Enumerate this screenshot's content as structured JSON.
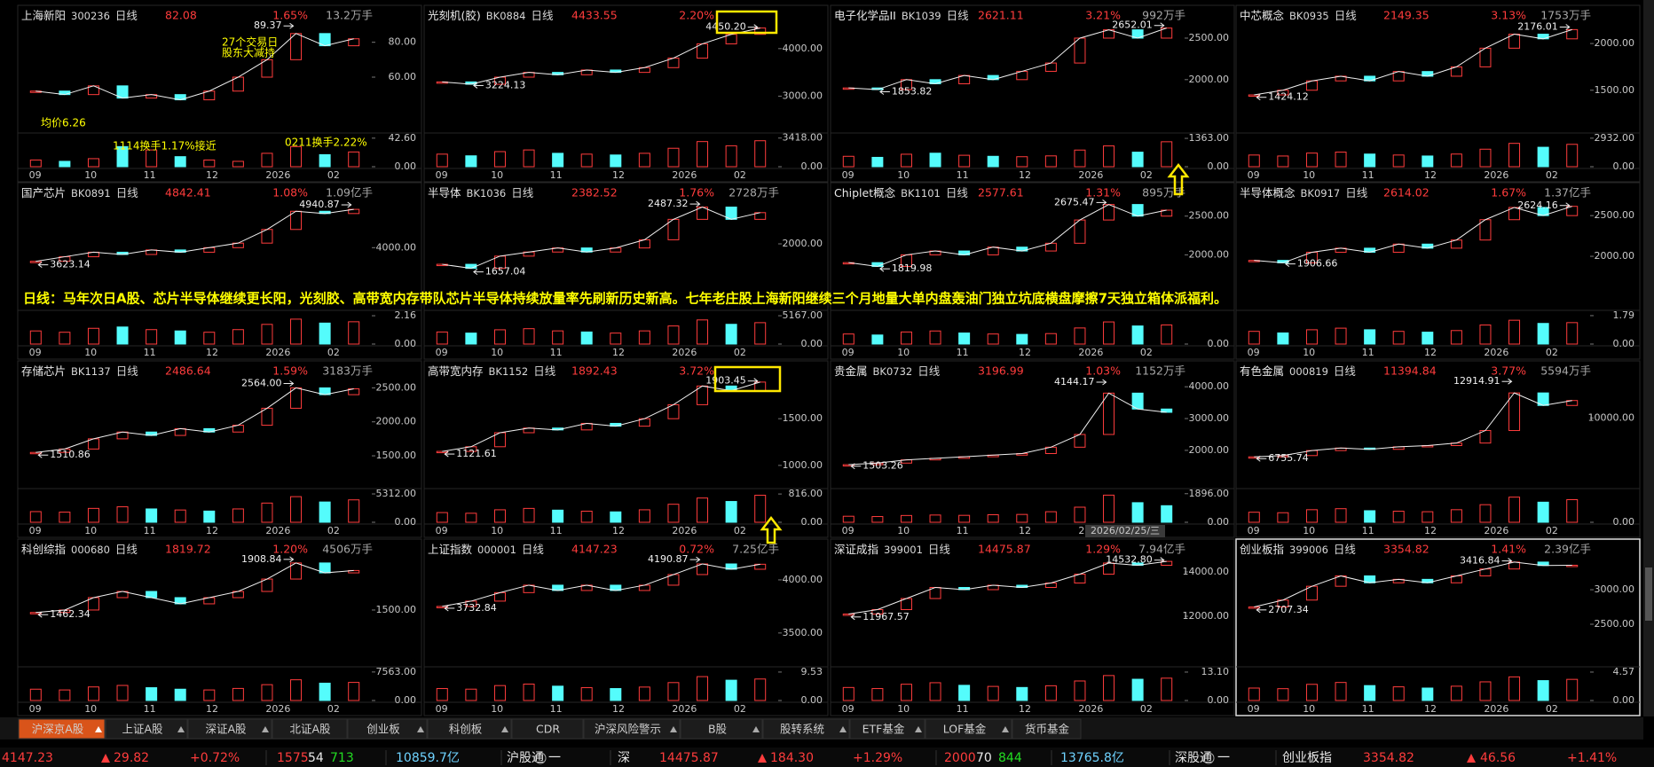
{
  "announcement": "日线：马年次日A股、芯片半导体继续更长阳，光刻胶、高带宽内存带队芯片半导体持续放量率先刷新历史新高。七年老庄股上海新阳继续三个月地量大单内盘轰油门独立坑底横盘摩擦7天独立箱体派福利。",
  "panels": [
    {
      "name": "上海新阳",
      "code": "300236",
      "period": "日线",
      "price": "82.08",
      "change": "1.65%",
      "volume": "13.2万手",
      "ylim": [
        30,
        90
      ],
      "yticks": [
        {
          "value": 80,
          "label": "80.00"
        },
        {
          "value": 60,
          "label": "60.00"
        }
      ],
      "high": 89.37,
      "close": [
        52,
        50,
        55,
        48,
        50,
        47,
        52,
        60,
        70,
        85,
        78,
        82
      ],
      "vylim": [
        0,
        45
      ],
      "vticks": [
        {
          "value": 42.6,
          "label": "42.60"
        },
        {
          "value": 0,
          "label": "0.00"
        }
      ],
      "vol": [
        10,
        8,
        12,
        30,
        25,
        15,
        10,
        8,
        20,
        30,
        18,
        22
      ],
      "xlabels": [
        "09",
        "10",
        "11",
        "12",
        "2026",
        "02"
      ],
      "annotations": [
        "27个交易日",
        "股东大减持",
        "1114换手1.17%接近",
        "0211换手2.22%",
        "均价6.26"
      ]
    },
    {
      "name": "光刻机(胶)",
      "code": "BK0884",
      "period": "日线",
      "price": "4433.55",
      "change": "2.20%",
      "ylim": [
        2300,
        4500
      ],
      "yticks": [
        {
          "value": 4000,
          "label": "4000.00"
        },
        {
          "value": 3000,
          "label": "3000.00"
        }
      ],
      "high": {
        "value": 4450.2,
        "label": "4450.20"
      },
      "low": 3224.13,
      "close": [
        3300,
        3250,
        3400,
        3500,
        3450,
        3550,
        3500,
        3600,
        3800,
        4100,
        4300,
        4433
      ],
      "vylim": [
        0,
        3600
      ],
      "vticks": [
        {
          "value": 3418,
          "label": "3418.00"
        },
        {
          "value": 0,
          "label": "0.00"
        }
      ],
      "vol": [
        1500,
        1300,
        1800,
        2000,
        1600,
        1500,
        1400,
        1600,
        2200,
        3000,
        2500,
        3100
      ],
      "xlabels": [
        "09",
        "10",
        "11",
        "12",
        "2026",
        "02"
      ]
    },
    {
      "name": "电子化学品II",
      "code": "BK1039",
      "period": "日线",
      "price": "2621.11",
      "change": "3.21%",
      "volume": "992万手",
      "ylim": [
        1400,
        2660
      ],
      "yticks": [
        {
          "value": 2500,
          "label": "2500.00"
        },
        {
          "value": 2000,
          "label": "2000.00"
        }
      ],
      "high": 2652.01,
      "low": 1853.82,
      "close": [
        1900,
        1880,
        2000,
        1950,
        2050,
        2000,
        2100,
        2200,
        2500,
        2600,
        2500,
        2621
      ],
      "vylim": [
        0,
        1450
      ],
      "vticks": [
        {
          "value": 1363,
          "label": "1363.00"
        },
        {
          "value": 0,
          "label": "0.00"
        }
      ],
      "vol": [
        500,
        450,
        600,
        650,
        550,
        500,
        480,
        520,
        800,
        1000,
        700,
        1200
      ],
      "xlabels": [
        "09",
        "10",
        "11",
        "12",
        "2026",
        "02"
      ]
    },
    {
      "name": "中芯概念",
      "code": "BK0935",
      "period": "日线",
      "price": "2149.35",
      "change": "3.13%",
      "volume": "1753万手",
      "ylim": [
        1080,
        2200
      ],
      "yticks": [
        {
          "value": 2000,
          "label": "2000.00"
        },
        {
          "value": 1500,
          "label": "1500.00"
        }
      ],
      "high": 2176.01,
      "low": 1424.12,
      "close": [
        1450,
        1500,
        1600,
        1650,
        1600,
        1700,
        1650,
        1750,
        1950,
        2100,
        2050,
        2149
      ],
      "vylim": [
        0,
        3100
      ],
      "vticks": [
        {
          "value": 2932,
          "label": "2932.00"
        },
        {
          "value": 0,
          "label": "0.00"
        }
      ],
      "vol": [
        1200,
        1100,
        1400,
        1500,
        1300,
        1200,
        1100,
        1300,
        1800,
        2400,
        2000,
        2300
      ],
      "xlabels": [
        "09",
        "10",
        "11",
        "12",
        "2026",
        "02"
      ]
    },
    {
      "name": "国产芯片",
      "code": "BK0891",
      "period": "日线",
      "price": "4842.41",
      "change": "1.08%",
      "volume": "1.09亿手",
      "ylim": [
        2700,
        5000
      ],
      "yticks": [
        {
          "value": 4000,
          "label": "4000.00"
        }
      ],
      "high": 4940.87,
      "low": 3623.14,
      "close": [
        3700,
        3800,
        3900,
        3850,
        3950,
        3900,
        4000,
        4100,
        4400,
        4800,
        4750,
        4842
      ],
      "vylim": [
        0,
        2.3
      ],
      "vticks": [
        2.16,
        {
          "value": 0,
          "label": "0.00"
        }
      ],
      "vol": [
        1.0,
        0.9,
        1.2,
        1.3,
        1.1,
        1.0,
        0.9,
        1.1,
        1.5,
        1.9,
        1.6,
        1.7
      ],
      "xlabels": [
        "09",
        "10",
        "11",
        "12",
        "2026",
        "02"
      ]
    },
    {
      "name": "半导体",
      "code": "BK1036",
      "period": "日线",
      "price": "2382.52",
      "change": "1.76%",
      "volume": "2728万手",
      "ylim": [
        1230,
        2510
      ],
      "yticks": [
        {
          "value": 2000,
          "label": "2000.00"
        }
      ],
      "high": 2487.32,
      "low": 1657.04,
      "close": [
        1750,
        1700,
        1850,
        1900,
        1950,
        1900,
        1950,
        2050,
        2300,
        2450,
        2300,
        2382
      ],
      "vylim": [
        0,
        5500
      ],
      "vticks": [
        {
          "value": 5167,
          "label": "5167.00"
        },
        {
          "value": 0,
          "label": "0.00"
        }
      ],
      "vol": [
        2200,
        2000,
        2600,
        2800,
        2400,
        2200,
        2000,
        2400,
        3300,
        4400,
        3600,
        3900
      ],
      "xlabels": [
        "09",
        "10",
        "11",
        "12",
        "2026",
        "02"
      ]
    },
    {
      "name": "Chiplet概念",
      "code": "BK1101",
      "period": "日线",
      "price": "2577.61",
      "change": "1.31%",
      "volume": "895万手",
      "ylim": [
        1330,
        2680
      ],
      "yticks": [
        {
          "value": 2500,
          "label": "2500.00"
        },
        {
          "value": 2000,
          "label": "2000.00"
        }
      ],
      "high": 2675.47,
      "low": 1819.98,
      "close": [
        1900,
        1850,
        2000,
        2050,
        2000,
        2100,
        2050,
        2150,
        2450,
        2650,
        2500,
        2577
      ],
      "vylim": [
        0,
        1500
      ],
      "vticks": [
        {
          "value": 0,
          "label": "0.00"
        }
      ],
      "vol": [
        500,
        450,
        600,
        650,
        550,
        500,
        480,
        520,
        800,
        1100,
        900,
        950
      ],
      "xlabels": [
        "09",
        "10",
        "11",
        "12",
        "2026",
        "02"
      ]
    },
    {
      "name": "半导体概念",
      "code": "BK0917",
      "period": "日线",
      "price": "2614.02",
      "change": "1.67%",
      "volume": "1.37亿手",
      "ylim": [
        1380,
        2665
      ],
      "yticks": [
        {
          "value": 2500,
          "label": "2500.00"
        },
        {
          "value": 2000,
          "label": "2000.00"
        }
      ],
      "high": 2624.16,
      "low": 1906.66,
      "close": [
        1950,
        1920,
        2050,
        2100,
        2050,
        2150,
        2100,
        2200,
        2450,
        2600,
        2500,
        2614
      ],
      "vylim": [
        0,
        1.9
      ],
      "vticks": [
        1.79,
        {
          "value": 0,
          "label": "0.00"
        }
      ],
      "vol": [
        0.8,
        0.7,
        0.9,
        1.0,
        0.9,
        0.8,
        0.75,
        0.85,
        1.2,
        1.5,
        1.3,
        1.35
      ],
      "xlabels": [
        "09",
        "10",
        "11",
        "12",
        "2026",
        "02"
      ]
    },
    {
      "name": "存储芯片",
      "code": "BK1137",
      "period": "日线",
      "price": "2486.64",
      "change": "1.59%",
      "volume": "3183万手",
      "ylim": [
        1070,
        2610
      ],
      "yticks": [
        {
          "value": 2500,
          "label": "2500.00"
        },
        {
          "value": 2000,
          "label": "2000.00"
        },
        {
          "value": 1500,
          "label": "1500.00"
        }
      ],
      "high": {
        "value": 2564,
        "label": "2564.00"
      },
      "low": 1510.86,
      "close": [
        1550,
        1600,
        1750,
        1850,
        1800,
        1900,
        1850,
        1950,
        2200,
        2500,
        2400,
        2486
      ],
      "vylim": [
        0,
        5650
      ],
      "vticks": [
        {
          "value": 5312,
          "label": "5312.00"
        },
        {
          "value": 0,
          "label": "0.00"
        }
      ],
      "vol": [
        2000,
        1900,
        2600,
        2900,
        2500,
        2300,
        2100,
        2500,
        3600,
        4800,
        3800,
        4200
      ],
      "xlabels": [
        "09",
        "10",
        "11",
        "12",
        "2026",
        "02"
      ]
    },
    {
      "name": "高带宽内存",
      "code": "BK1152",
      "period": "日线",
      "price": "1892.43",
      "change": "3.72%",
      "ylim": [
        790,
        1910
      ],
      "yticks": [
        {
          "value": 1500,
          "label": "1500.00"
        },
        {
          "value": 1000,
          "label": "1000.00"
        }
      ],
      "high": 1903.45,
      "low": 1121.61,
      "close": [
        1150,
        1200,
        1350,
        1400,
        1380,
        1450,
        1420,
        1500,
        1650,
        1850,
        1800,
        1892
      ],
      "vylim": [
        0,
        870
      ],
      "vticks": [
        {
          "value": 816,
          "label": "816.00"
        },
        {
          "value": 0,
          "label": "0.00"
        }
      ],
      "vol": [
        280,
        260,
        360,
        400,
        350,
        320,
        300,
        360,
        520,
        700,
        600,
        780
      ],
      "xlabels": [
        "09",
        "10",
        "11",
        "12",
        "2026",
        "02"
      ]
    },
    {
      "name": "贵金属",
      "code": "BK0732",
      "period": "日线",
      "price": "3196.99",
      "change": "1.03%",
      "volume": "1152万手",
      "ylim": [
        910,
        4200
      ],
      "yticks": [
        {
          "value": 4000,
          "label": "4000.00"
        },
        {
          "value": 3000,
          "label": "3000.00"
        },
        {
          "value": 2000,
          "label": "2000.00"
        }
      ],
      "high": 4144.17,
      "low": 1503.26,
      "close": [
        1550,
        1600,
        1700,
        1750,
        1800,
        1850,
        1900,
        2100,
        2500,
        3800,
        3300,
        3197
      ],
      "vylim": [
        0,
        2000
      ],
      "vticks": [
        {
          "value": 1896,
          "label": "1896.00"
        },
        {
          "value": 0,
          "label": "0.00"
        }
      ],
      "vol": [
        400,
        380,
        450,
        480,
        460,
        500,
        520,
        700,
        1000,
        1800,
        1300,
        1100
      ],
      "xlabels": [
        "09",
        "10",
        "11",
        "12",
        "2026",
        "02"
      ],
      "cursor_date": "2026/02/25/三"
    },
    {
      "name": "有色金属",
      "code": "000819",
      "period": "日线",
      "price": "11394.84",
      "change": "3.77%",
      "volume": "5594万手",
      "ylim": [
        4650,
        13000
      ],
      "yticks": [
        {
          "value": 10000,
          "label": "10000.00"
        }
      ],
      "high": 12914.91,
      "low": 6755.74,
      "close": [
        6900,
        7000,
        7400,
        7600,
        7500,
        7700,
        7800,
        8000,
        9000,
        12000,
        11000,
        11394
      ],
      "vylim": [
        0,
        6000
      ],
      "vticks": [
        {
          "value": 0,
          "label": "0.00"
        }
      ],
      "vol": [
        2000,
        1900,
        2500,
        2700,
        2300,
        2200,
        2100,
        2500,
        3500,
        5000,
        4000,
        4500
      ],
      "xlabels": [
        "09",
        "10",
        "11",
        "12",
        "2026",
        "02"
      ]
    },
    {
      "name": "科创综指",
      "code": "000680",
      "period": "日线",
      "price": "1819.72",
      "change": "1.20%",
      "volume": "4506万手",
      "ylim": [
        1070,
        1915
      ],
      "yticks": [
        {
          "value": 1500,
          "label": "1500.00"
        }
      ],
      "high": 1908.84,
      "low": 1462.34,
      "close": [
        1480,
        1500,
        1600,
        1650,
        1600,
        1550,
        1600,
        1650,
        1750,
        1880,
        1800,
        1819
      ],
      "vylim": [
        0,
        8000
      ],
      "vticks": [
        {
          "value": 7563,
          "label": "7563.00"
        },
        {
          "value": 0,
          "label": "0.00"
        }
      ],
      "vol": [
        3000,
        2800,
        3600,
        4000,
        3400,
        3000,
        2800,
        3200,
        4200,
        5500,
        4600,
        4800
      ],
      "xlabels": [
        "09",
        "10",
        "11",
        "12",
        "2026",
        "02"
      ]
    },
    {
      "name": "上证指数",
      "code": "000001",
      "period": "日线",
      "price": "4147.23",
      "change": "0.72%",
      "volume": "7.25亿手",
      "ylim": [
        3215,
        4200
      ],
      "yticks": [
        {
          "value": 4000,
          "label": "4000.00"
        },
        {
          "value": 3500,
          "label": "3500.00"
        }
      ],
      "high": 4190.87,
      "low": 3732.84,
      "close": [
        3750,
        3800,
        3880,
        3950,
        3900,
        3950,
        3900,
        3950,
        4050,
        4150,
        4100,
        4147
      ],
      "vylim": [
        0,
        10.1
      ],
      "vticks": [
        9.53,
        {
          "value": 0,
          "label": "0.00"
        }
      ],
      "vol": [
        4.0,
        3.8,
        5.0,
        5.5,
        4.8,
        4.3,
        4.0,
        4.5,
        6.0,
        8.0,
        6.8,
        7.2
      ],
      "xlabels": [
        "09",
        "10",
        "11",
        "12",
        "2026",
        "02"
      ]
    },
    {
      "name": "深证成指",
      "code": "399001",
      "period": "日线",
      "price": "14475.87",
      "change": "1.29%",
      "volume": "7.94亿手",
      "ylim": [
        9880,
        14600
      ],
      "yticks": [
        {
          "value": 14000,
          "label": "14000.00"
        },
        {
          "value": 12000,
          "label": "12000.00"
        }
      ],
      "high": {
        "value": 14532.8,
        "label": "14532.80"
      },
      "low": 11967.57,
      "close": [
        12100,
        12300,
        12800,
        13300,
        13200,
        13400,
        13300,
        13500,
        13900,
        14400,
        14300,
        14475
      ],
      "vylim": [
        0,
        13.9
      ],
      "vticks": [
        {
          "value": 13.1,
          "label": "13.10"
        },
        {
          "value": 0,
          "label": "0.00"
        }
      ],
      "vol": [
        6,
        5.5,
        7.5,
        8.2,
        7,
        6.5,
        6,
        6.8,
        9,
        11.5,
        9.8,
        10.3
      ],
      "xlabels": [
        "09",
        "10",
        "11",
        "12",
        "2026",
        "02"
      ]
    },
    {
      "name": "创业板指",
      "code": "399006",
      "period": "日线",
      "price": "3354.82",
      "change": "1.41%",
      "volume": "2.39亿手",
      "ylim": [
        1935,
        3450
      ],
      "yticks": [
        {
          "value": 3000,
          "label": "3000.00"
        },
        {
          "value": 2500,
          "label": "2500.00"
        }
      ],
      "high": 3416.84,
      "low": 2707.34,
      "close": [
        2750,
        2850,
        3050,
        3200,
        3100,
        3150,
        3100,
        3200,
        3300,
        3400,
        3350,
        3354
      ],
      "vylim": [
        0,
        4.85
      ],
      "vticks": [
        4.57,
        {
          "value": 0,
          "label": "0.00"
        }
      ],
      "vol": [
        2,
        1.9,
        2.6,
        2.9,
        2.4,
        2.2,
        2,
        2.3,
        3,
        3.8,
        3.2,
        3.4
      ],
      "xlabels": [
        "09",
        "10",
        "11",
        "12",
        "2026",
        "02"
      ]
    }
  ],
  "tabs": [
    "沪深京A股",
    "上证A股",
    "深证A股",
    "北证A股",
    "创业板",
    "科创板",
    "CDR",
    "沪深风险警示",
    "B股",
    "股转系统",
    "ETF基金",
    "LOF基金",
    "货币基金"
  ],
  "status_bar": [
    "4147.23",
    "29.82",
    "+0.72%",
    "1575",
    "54",
    "713",
    "10859.7亿",
    "沪股通",
    "一",
    "深",
    "14475.87",
    "184.30",
    "+1.29%",
    "2000",
    "70",
    "844",
    "13765.8亿",
    "深股通",
    "一",
    "创业板指",
    "3354.82",
    "46.56",
    "+1.41%"
  ]
}
